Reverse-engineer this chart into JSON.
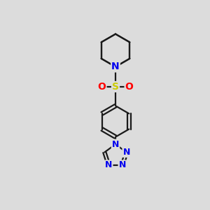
{
  "background_color": "#dcdcdc",
  "bond_color": "#1a1a1a",
  "N_color": "#0000ee",
  "S_color": "#cccc00",
  "O_color": "#ff0000",
  "bond_width": 1.6,
  "figsize": [
    3.0,
    3.0
  ],
  "dpi": 100,
  "xlim": [
    0,
    10
  ],
  "ylim": [
    0,
    10
  ]
}
